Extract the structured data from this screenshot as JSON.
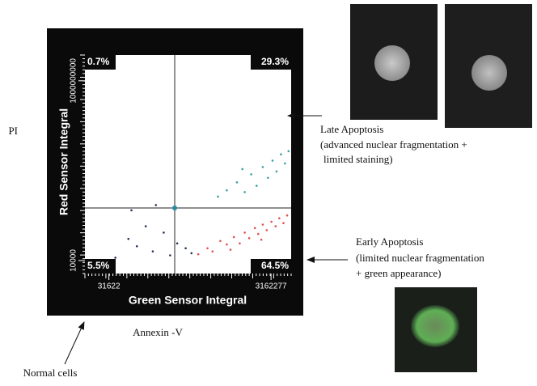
{
  "chart_data": {
    "type": "scatter",
    "xlabel": "Green Sensor Integral",
    "ylabel": "Red Sensor Integral",
    "log_x": true,
    "log_y": true,
    "xlim": [
      16000,
      5600000
    ],
    "ylim": [
      4360,
      5200000000
    ],
    "xticks": [
      31622,
      3162277
    ],
    "yticks": [
      10000,
      1000000000
    ],
    "gate": {
      "x": 205000,
      "y": 290000,
      "color": "#2a8aa0"
    },
    "quadrant_labels": {
      "upper_left": "0.7%",
      "upper_right": "29.3%",
      "lower_left": "5.5%",
      "lower_right": "64.5%"
    },
    "series": [
      {
        "color": "#e05050",
        "x": [
          400000,
          520000,
          600000,
          750000,
          900000,
          1100000,
          1300000,
          1500000,
          1700000,
          2000000,
          2200000,
          2500000,
          2800000,
          3200000,
          3600000,
          4000000,
          4500000,
          5000000,
          1000000,
          2400000
        ],
        "values": [
          15000,
          22000,
          18000,
          35000,
          28000,
          45000,
          30000,
          60000,
          42000,
          80000,
          55000,
          100000,
          70000,
          120000,
          90000,
          150000,
          110000,
          180000,
          20000,
          38000
        ]
      },
      {
        "color": "#3aa0a0",
        "x": [
          700000,
          900000,
          1200000,
          1500000,
          1800000,
          2100000,
          2500000,
          2900000,
          3300000,
          3700000,
          4200000,
          4700000,
          5200000,
          1400000
        ],
        "values": [
          600000,
          900000,
          1500000,
          800000,
          2500000,
          1200000,
          4000000,
          2000000,
          6000000,
          3000000,
          9000000,
          5000000,
          11000000,
          3500000
        ]
      },
      {
        "color": "#223355",
        "x": [
          38000,
          55000,
          70000,
          90000,
          110000,
          150000,
          180000,
          220000,
          280000,
          330000,
          60000,
          120000
        ],
        "values": [
          12000,
          40000,
          25000,
          90000,
          18000,
          60000,
          14000,
          30000,
          22000,
          16000,
          250000,
          350000
        ]
      }
    ]
  },
  "annotations": {
    "pi": "PI",
    "annexin": "Annexin -V",
    "normal": "Normal cells",
    "late": [
      "Late Apoptosis",
      "(advanced nuclear fragmentation +",
      "limited staining)"
    ],
    "early": [
      "Early Apoptosis",
      "(limited nuclear fragmentation",
      "+ green appearance)"
    ]
  }
}
